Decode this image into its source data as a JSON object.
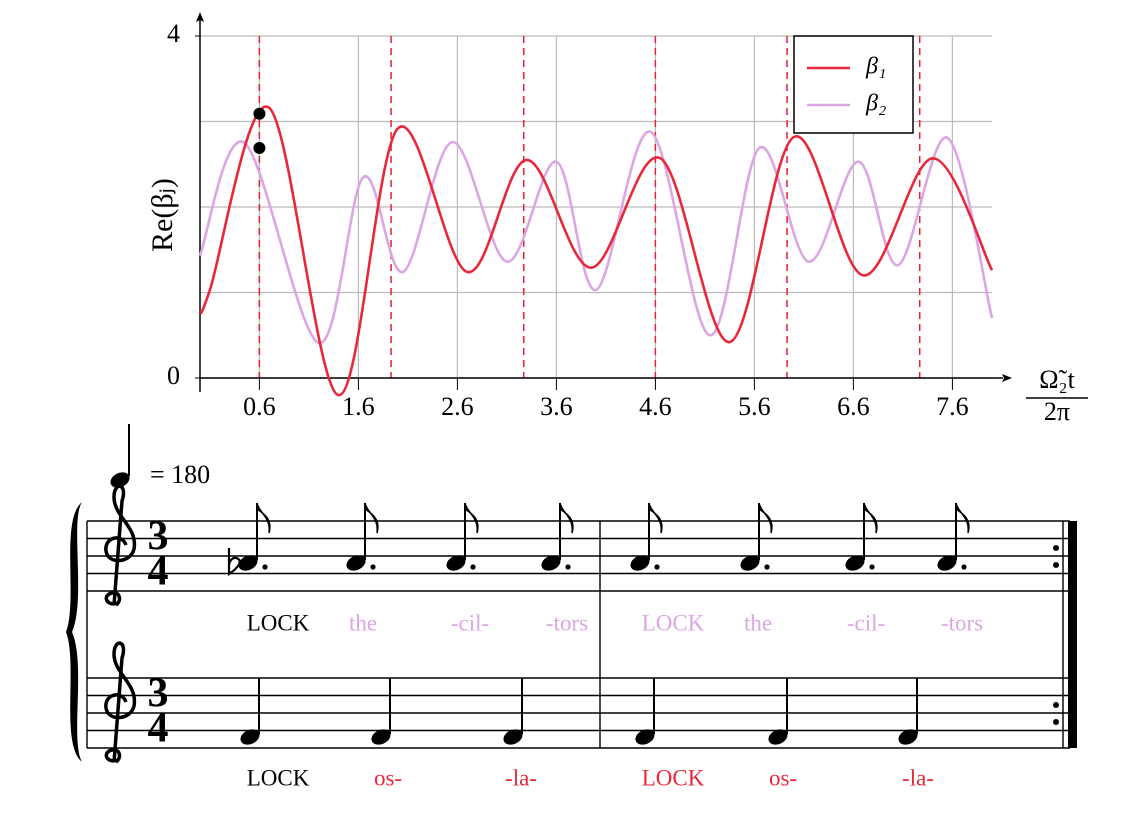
{
  "chart_data": {
    "type": "line",
    "ylabel": "Re(βⱼ)",
    "xlabel": {
      "numerator": "Ω̃₂t",
      "denominator": "2π"
    },
    "xlim": [
      0,
      8
    ],
    "ylim": [
      0,
      4
    ],
    "xticks": [
      0.6,
      1.6,
      2.6,
      3.6,
      4.6,
      5.6,
      6.6,
      7.6
    ],
    "yticks": [
      0,
      4
    ],
    "ygrid": [
      0,
      1,
      2,
      3,
      4
    ],
    "xgrid": true,
    "legend": "upper right",
    "vlines": {
      "values": [
        0.6,
        1.93,
        3.27,
        4.6,
        5.93,
        7.27
      ],
      "color": "#e8202f"
    },
    "markers": {
      "x": [
        0.6,
        0.6
      ],
      "y": [
        3.09,
        2.69
      ],
      "color": "#000000"
    },
    "series": [
      {
        "name": "β₁",
        "color": "#e8283a",
        "x": [
          0,
          0.1,
          0.7,
          1.4,
          2.0,
          2.7,
          3.3,
          3.95,
          4.65,
          5.35,
          6.0,
          6.7,
          7.4,
          8.0
        ],
        "values": [
          0.76,
          1.03,
          3.16,
          -0.2,
          2.92,
          1.24,
          2.55,
          1.29,
          2.57,
          0.42,
          2.82,
          1.2,
          2.57,
          1.26
        ]
      },
      {
        "name": "β₂",
        "color": "#dba6e3",
        "x": [
          0,
          0.45,
          1.2,
          1.65,
          2.05,
          2.55,
          3.1,
          3.6,
          4.0,
          4.55,
          5.15,
          5.65,
          6.15,
          6.65,
          7.05,
          7.55,
          8.0
        ],
        "values": [
          1.43,
          2.75,
          0.41,
          2.35,
          1.24,
          2.76,
          1.36,
          2.53,
          1.03,
          2.88,
          0.5,
          2.69,
          1.36,
          2.53,
          1.32,
          2.81,
          0.7
        ]
      }
    ]
  },
  "score": {
    "tempo": "= 180",
    "time_signature": [
      "3",
      "4"
    ],
    "staves": [
      {
        "lyrics": [
          {
            "text": "LOCK",
            "color": "#000000"
          },
          {
            "text": "the",
            "color": "#dba6e3"
          },
          {
            "text": "-cil-",
            "color": "#dba6e3"
          },
          {
            "text": "-tors",
            "color": "#dba6e3"
          },
          {
            "text": "LOCK",
            "color": "#dba6e3"
          },
          {
            "text": "the",
            "color": "#dba6e3"
          },
          {
            "text": "-cil-",
            "color": "#dba6e3"
          },
          {
            "text": "-tors",
            "color": "#dba6e3"
          }
        ]
      },
      {
        "lyrics": [
          {
            "text": "LOCK",
            "color": "#000000"
          },
          {
            "text": "os-",
            "color": "#e8283a"
          },
          {
            "text": "-la-",
            "color": "#e8283a"
          },
          {
            "text": "LOCK",
            "color": "#e8283a"
          },
          {
            "text": "os-",
            "color": "#e8283a"
          },
          {
            "text": "-la-",
            "color": "#e8283a"
          }
        ]
      }
    ]
  }
}
